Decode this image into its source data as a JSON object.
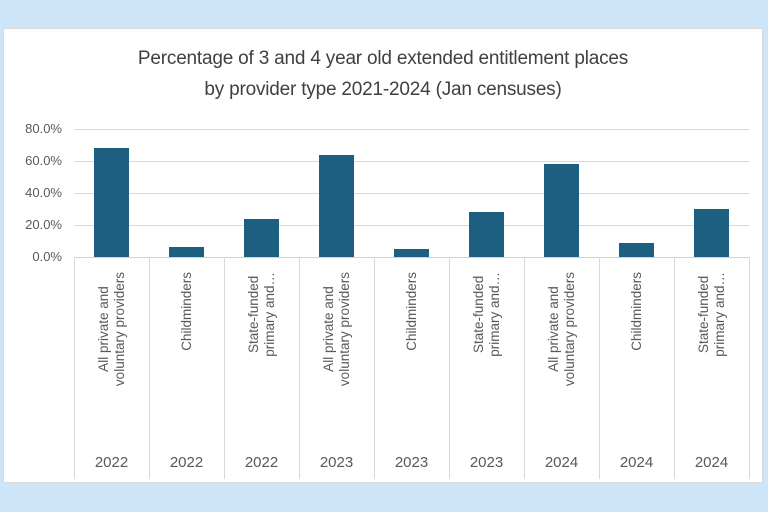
{
  "page": {
    "background_color": "#cde5f6",
    "panel_color": "#ffffff"
  },
  "chart": {
    "title_line1": "Percentage of 3 and 4 year old extended entitlement places",
    "title_line2": "by provider type 2021-2024 (Jan censuses)"
  },
  "colors": {
    "bar": "#1c5f80",
    "gridline": "#d9d9d9",
    "axis_text": "#595959",
    "title_text": "#404040",
    "frame_blue": "#cde5f6"
  },
  "chart_data": {
    "type": "bar",
    "title": "Percentage of 3 and 4 year old extended entitlement places by provider type 2021-2024 (Jan censuses)",
    "xlabel": "",
    "ylabel": "",
    "ylim": [
      0,
      80
    ],
    "grid": true,
    "legend": false,
    "yticks": [
      {
        "value": 80,
        "label": "80.0%"
      },
      {
        "value": 60,
        "label": "60.0%"
      },
      {
        "value": 40,
        "label": "40.0%"
      },
      {
        "value": 20,
        "label": "20.0%"
      },
      {
        "value": 0,
        "label": "0.0%"
      }
    ],
    "categories": [
      {
        "provider": "All private and\nvoluntary providers",
        "year": "2022",
        "value": 68
      },
      {
        "provider": "Childminders",
        "year": "2022",
        "value": 6
      },
      {
        "provider": "State-funded\nprimary and…",
        "year": "2022",
        "value": 24
      },
      {
        "provider": "All private and\nvoluntary providers",
        "year": "2023",
        "value": 64
      },
      {
        "provider": "Childminders",
        "year": "2023",
        "value": 5
      },
      {
        "provider": "State-funded\nprimary and…",
        "year": "2023",
        "value": 28
      },
      {
        "provider": "All private and\nvoluntary providers",
        "year": "2024",
        "value": 58
      },
      {
        "provider": "Childminders",
        "year": "2024",
        "value": 9
      },
      {
        "provider": "State-funded\nprimary and…",
        "year": "2024",
        "value": 30
      }
    ]
  }
}
